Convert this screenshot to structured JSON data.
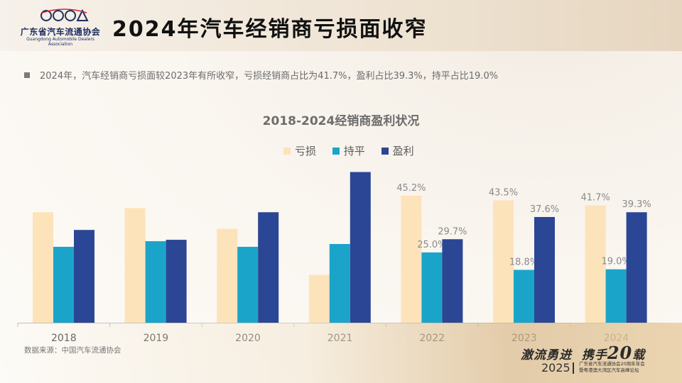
{
  "header": {
    "title": "2024年汽车经销商亏损面收窄",
    "logo": {
      "cn_name": "广东省汽车流通协会",
      "en_name": "Guangdong Automobile Dealers Association",
      "mark": "GADA"
    }
  },
  "summary": {
    "text": "2024年，汽车经销商亏损面较2023年有所收窄，亏损经销商占比为41.7%，盈利占比39.3%，持平占比19.0%"
  },
  "chart_data": {
    "type": "bar",
    "title": "2018-2024经销商盈利状况",
    "categories": [
      "2018",
      "2019",
      "2020",
      "2021",
      "2022",
      "2023",
      "2024"
    ],
    "series": [
      {
        "name": "亏损",
        "color": "#fde3ba",
        "values": [
          39.3,
          40.8,
          33.4,
          17.0,
          45.2,
          43.5,
          41.7
        ],
        "labels": [
          "",
          "",
          "",
          "",
          "45.2%",
          "43.5%",
          "41.7%"
        ]
      },
      {
        "name": "持平",
        "color": "#1ba4ca",
        "values": [
          27.0,
          29.0,
          27.0,
          28.0,
          25.0,
          18.8,
          19.0
        ],
        "labels": [
          "",
          "",
          "",
          "",
          "25.0%",
          "18.8%",
          "19.0%"
        ]
      },
      {
        "name": "盈利",
        "color": "#2b4694",
        "values": [
          33.0,
          29.5,
          39.3,
          53.6,
          29.7,
          37.6,
          39.3
        ],
        "labels": [
          "",
          "",
          "",
          "",
          "29.7%",
          "37.6%",
          "39.3%"
        ]
      }
    ],
    "ylim": [
      0,
      55
    ],
    "legend_position": "top-center",
    "grid": false
  },
  "source": {
    "text": "数据来源：中国汽车流通协会"
  },
  "footer": {
    "slogan_a": "激流勇进",
    "slogan_b": "携手",
    "slogan_num": "20",
    "slogan_c": "载",
    "year": "2025",
    "event_line1": "广东省汽车流通协会20周年年会",
    "event_line2": "暨粤港澳大湾区汽车高峰论坛"
  }
}
